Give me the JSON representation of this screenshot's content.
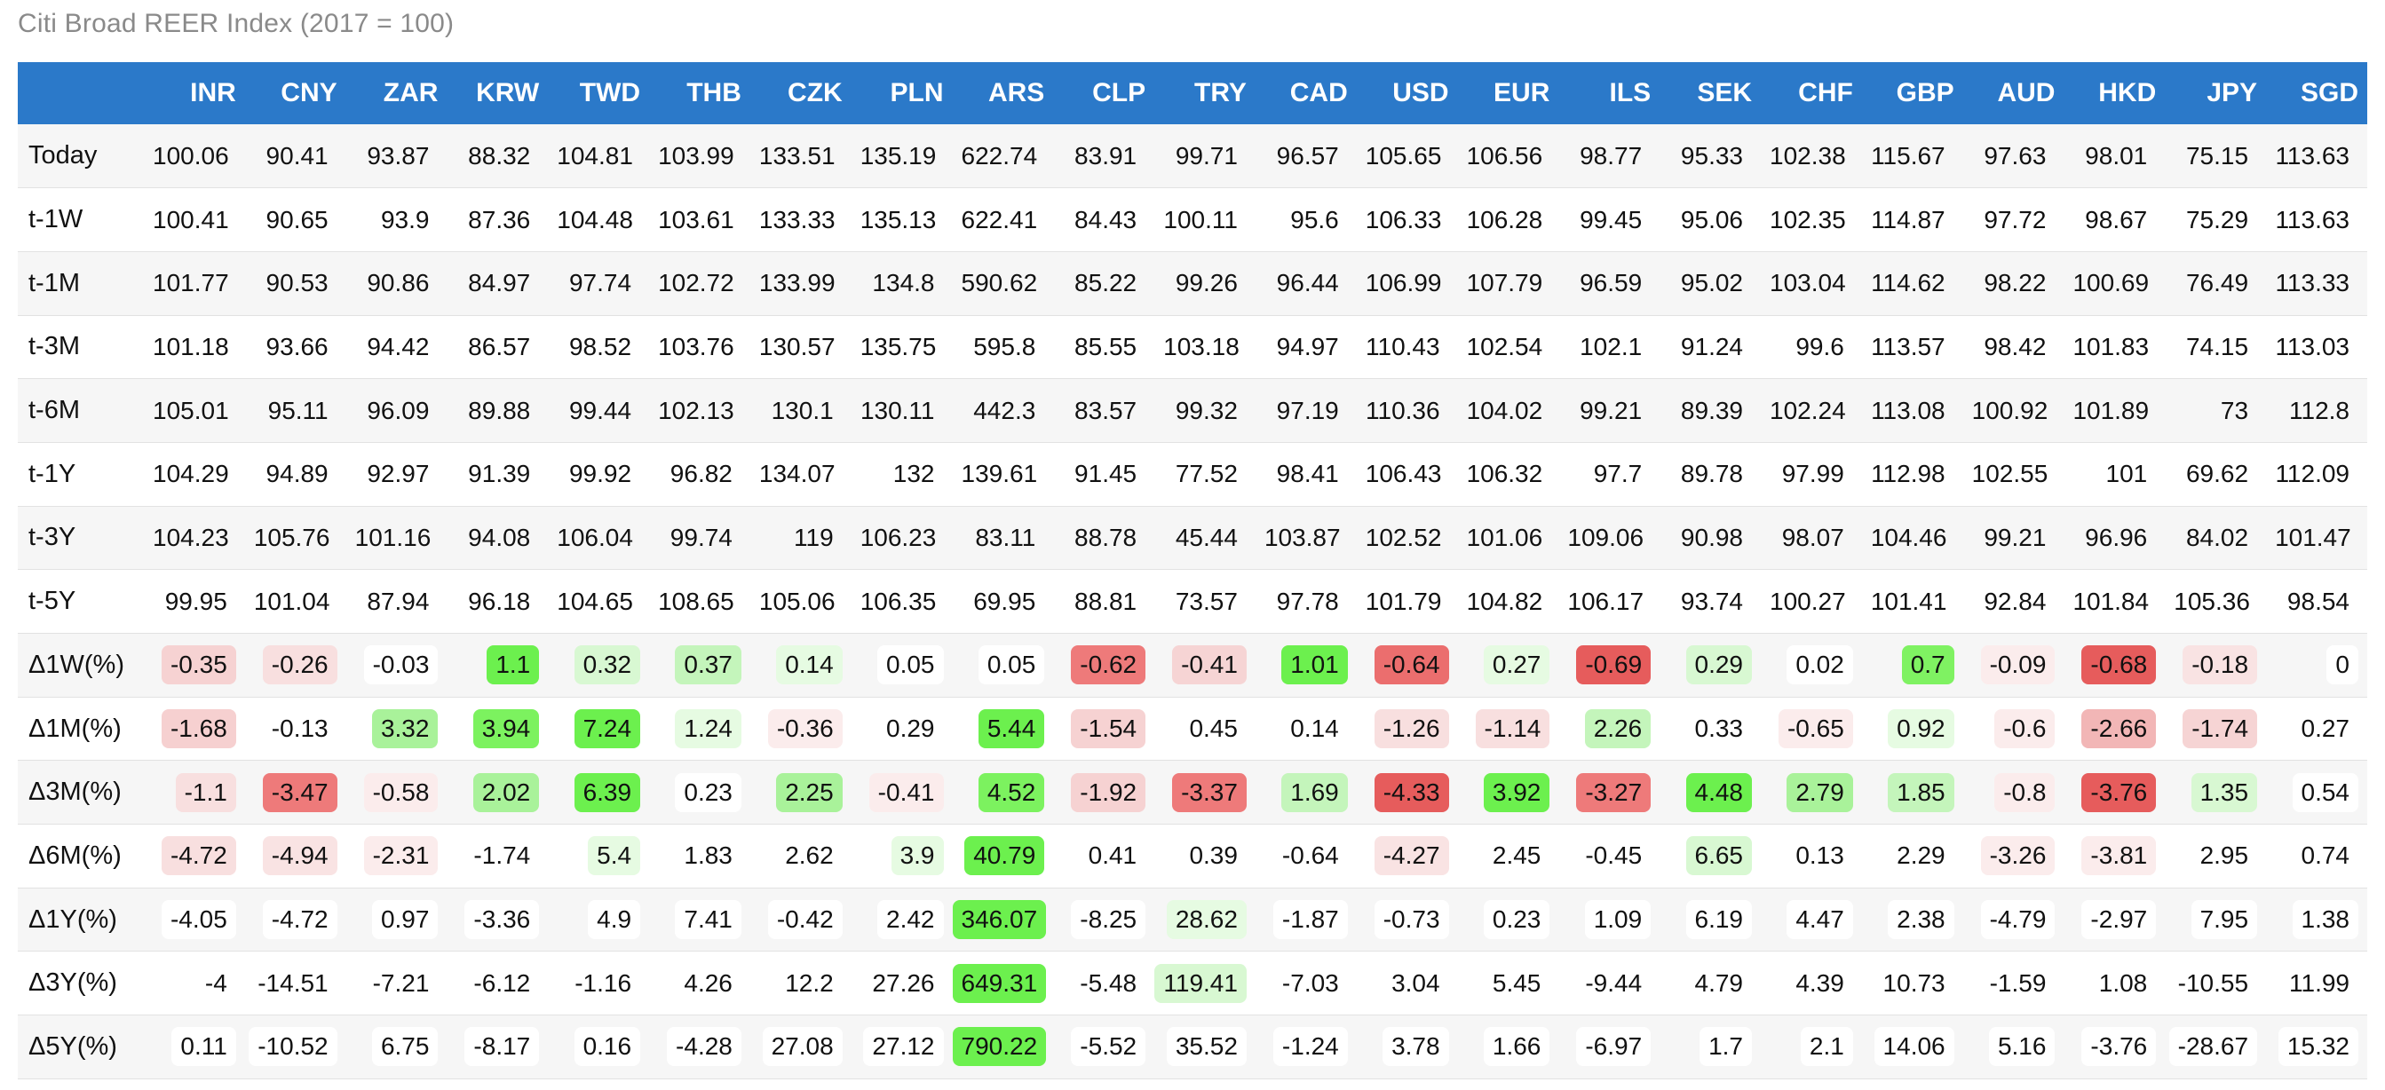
{
  "title": "Citi Broad REER Index (2017 = 100)",
  "chart_data": {
    "type": "table",
    "title": "Citi Broad REER Index (2017 = 100)",
    "columns": [
      "INR",
      "CNY",
      "ZAR",
      "KRW",
      "TWD",
      "THB",
      "CZK",
      "PLN",
      "ARS",
      "CLP",
      "TRY",
      "CAD",
      "USD",
      "EUR",
      "ILS",
      "SEK",
      "CHF",
      "GBP",
      "AUD",
      "HKD",
      "JPY",
      "SGD"
    ],
    "rows": [
      {
        "label": "Today",
        "values": [
          "100.06",
          "90.41",
          "93.87",
          "88.32",
          "104.81",
          "103.99",
          "133.51",
          "135.19",
          "622.74",
          "83.91",
          "99.71",
          "96.57",
          "105.65",
          "106.56",
          "98.77",
          "95.33",
          "102.38",
          "115.67",
          "97.63",
          "98.01",
          "75.15",
          "113.63"
        ]
      },
      {
        "label": "t-1W",
        "values": [
          "100.41",
          "90.65",
          "93.9",
          "87.36",
          "104.48",
          "103.61",
          "133.33",
          "135.13",
          "622.41",
          "84.43",
          "100.11",
          "95.6",
          "106.33",
          "106.28",
          "99.45",
          "95.06",
          "102.35",
          "114.87",
          "97.72",
          "98.67",
          "75.29",
          "113.63"
        ]
      },
      {
        "label": "t-1M",
        "values": [
          "101.77",
          "90.53",
          "90.86",
          "84.97",
          "97.74",
          "102.72",
          "133.99",
          "134.8",
          "590.62",
          "85.22",
          "99.26",
          "96.44",
          "106.99",
          "107.79",
          "96.59",
          "95.02",
          "103.04",
          "114.62",
          "98.22",
          "100.69",
          "76.49",
          "113.33"
        ]
      },
      {
        "label": "t-3M",
        "values": [
          "101.18",
          "93.66",
          "94.42",
          "86.57",
          "98.52",
          "103.76",
          "130.57",
          "135.75",
          "595.8",
          "85.55",
          "103.18",
          "94.97",
          "110.43",
          "102.54",
          "102.1",
          "91.24",
          "99.6",
          "113.57",
          "98.42",
          "101.83",
          "74.15",
          "113.03"
        ]
      },
      {
        "label": "t-6M",
        "values": [
          "105.01",
          "95.11",
          "96.09",
          "89.88",
          "99.44",
          "102.13",
          "130.1",
          "130.11",
          "442.3",
          "83.57",
          "99.32",
          "97.19",
          "110.36",
          "104.02",
          "99.21",
          "89.39",
          "102.24",
          "113.08",
          "100.92",
          "101.89",
          "73",
          "112.8"
        ]
      },
      {
        "label": "t-1Y",
        "values": [
          "104.29",
          "94.89",
          "92.97",
          "91.39",
          "99.92",
          "96.82",
          "134.07",
          "132",
          "139.61",
          "91.45",
          "77.52",
          "98.41",
          "106.43",
          "106.32",
          "97.7",
          "89.78",
          "97.99",
          "112.98",
          "102.55",
          "101",
          "69.62",
          "112.09"
        ]
      },
      {
        "label": "t-3Y",
        "values": [
          "104.23",
          "105.76",
          "101.16",
          "94.08",
          "106.04",
          "99.74",
          "119",
          "106.23",
          "83.11",
          "88.78",
          "45.44",
          "103.87",
          "102.52",
          "101.06",
          "109.06",
          "90.98",
          "98.07",
          "104.46",
          "99.21",
          "96.96",
          "84.02",
          "101.47"
        ]
      },
      {
        "label": "t-5Y",
        "values": [
          "99.95",
          "101.04",
          "87.94",
          "96.18",
          "104.65",
          "108.65",
          "105.06",
          "106.35",
          "69.95",
          "88.81",
          "73.57",
          "97.78",
          "101.79",
          "104.82",
          "106.17",
          "93.74",
          "100.27",
          "101.41",
          "92.84",
          "101.84",
          "105.36",
          "98.54"
        ]
      },
      {
        "label": "Δ1W(%)",
        "values": [
          "-0.35",
          "-0.26",
          "-0.03",
          "1.1",
          "0.32",
          "0.37",
          "0.14",
          "0.05",
          "0.05",
          "-0.62",
          "-0.41",
          "1.01",
          "-0.64",
          "0.27",
          "-0.69",
          "0.29",
          "0.02",
          "0.7",
          "-0.09",
          "-0.68",
          "-0.18",
          "0"
        ]
      },
      {
        "label": "Δ1M(%)",
        "values": [
          "-1.68",
          "-0.13",
          "3.32",
          "3.94",
          "7.24",
          "1.24",
          "-0.36",
          "0.29",
          "5.44",
          "-1.54",
          "0.45",
          "0.14",
          "-1.26",
          "-1.14",
          "2.26",
          "0.33",
          "-0.65",
          "0.92",
          "-0.6",
          "-2.66",
          "-1.74",
          "0.27"
        ]
      },
      {
        "label": "Δ3M(%)",
        "values": [
          "-1.1",
          "-3.47",
          "-0.58",
          "2.02",
          "6.39",
          "0.23",
          "2.25",
          "-0.41",
          "4.52",
          "-1.92",
          "-3.37",
          "1.69",
          "-4.33",
          "3.92",
          "-3.27",
          "4.48",
          "2.79",
          "1.85",
          "-0.8",
          "-3.76",
          "1.35",
          "0.54"
        ]
      },
      {
        "label": "Δ6M(%)",
        "values": [
          "-4.72",
          "-4.94",
          "-2.31",
          "-1.74",
          "5.4",
          "1.83",
          "2.62",
          "3.9",
          "40.79",
          "0.41",
          "0.39",
          "-0.64",
          "-4.27",
          "2.45",
          "-0.45",
          "6.65",
          "0.13",
          "2.29",
          "-3.26",
          "-3.81",
          "2.95",
          "0.74"
        ]
      },
      {
        "label": "Δ1Y(%)",
        "values": [
          "-4.05",
          "-4.72",
          "0.97",
          "-3.36",
          "4.9",
          "7.41",
          "-0.42",
          "2.42",
          "346.07",
          "-8.25",
          "28.62",
          "-1.87",
          "-0.73",
          "0.23",
          "1.09",
          "6.19",
          "4.47",
          "2.38",
          "-4.79",
          "-2.97",
          "7.95",
          "1.38"
        ]
      },
      {
        "label": "Δ3Y(%)",
        "values": [
          "-4",
          "-14.51",
          "-7.21",
          "-6.12",
          "-1.16",
          "4.26",
          "12.2",
          "27.26",
          "649.31",
          "-5.48",
          "119.41",
          "-7.03",
          "3.04",
          "5.45",
          "-9.44",
          "4.79",
          "4.39",
          "10.73",
          "-1.59",
          "1.08",
          "-10.55",
          "11.99"
        ]
      },
      {
        "label": "Δ5Y(%)",
        "values": [
          "0.11",
          "-10.52",
          "6.75",
          "-8.17",
          "0.16",
          "-4.28",
          "27.08",
          "27.12",
          "790.22",
          "-5.52",
          "35.52",
          "-1.24",
          "3.78",
          "1.66",
          "-6.97",
          "1.7",
          "2.1",
          "14.06",
          "5.16",
          "-3.76",
          "-28.67",
          "15.32"
        ]
      }
    ],
    "cell_colors": {
      "Δ1W(%)": [
        "#f6d2d2",
        "#f8dfdf",
        "",
        "#6cf04e",
        "#d8f8d2",
        "#c4f5bb",
        "#e6fbe2",
        "",
        "",
        "#ee7a7a",
        "#f6d4d4",
        "#6cf04e",
        "#eb6e6e",
        "#e6fbe2",
        "#e65c5c",
        "#d8f8d2",
        "",
        "#7ff262",
        "#fbecec",
        "#e65c5c",
        "#f9e3e3",
        ""
      ],
      "Δ1M(%)": [
        "#f6d0d0",
        "",
        "#a9f29a",
        "#7cf25f",
        "#6cf04e",
        "#e6fbe2",
        "#fbecec",
        "",
        "#6cf04e",
        "#f6d2d2",
        "",
        "",
        "#f8dfdf",
        "#f8dfdf",
        "#c4f5bb",
        "",
        "#fbecec",
        "#e6fbe2",
        "#fbecec",
        "#f2b6b6",
        "#f6d4d4",
        ""
      ],
      "Δ3M(%)": [
        "#f8dfdf",
        "#ee7a7a",
        "#fbecec",
        "#a9f29a",
        "#6cf04e",
        "",
        "#a9f29a",
        "#fbecec",
        "#7cf25f",
        "#f6d2d2",
        "#ee7a7a",
        "#c4f5bb",
        "#e65c5c",
        "#6cf04e",
        "#ee7a7a",
        "#6cf04e",
        "#a9f29a",
        "#c4f5bb",
        "#fbecec",
        "#e65c5c",
        "#d8f8d2",
        ""
      ],
      "Δ6M(%)": [
        "#f8dfdf",
        "#f9e3e3",
        "#fbecec",
        "",
        "#e6fbe2",
        "",
        "",
        "#e6fbe2",
        "#6cf04e",
        "",
        "",
        "",
        "#f9e3e3",
        "",
        "",
        "#d8f8d2",
        "",
        "",
        "#fbecec",
        "#fbecec",
        "",
        ""
      ],
      "Δ1Y(%)": [
        "",
        "",
        "",
        "",
        "",
        "",
        "",
        "",
        "#6cf04e",
        "",
        "#e6fbe2",
        "",
        "",
        "",
        "",
        "",
        "",
        "",
        "",
        "",
        "",
        ""
      ],
      "Δ3Y(%)": [
        "",
        "",
        "",
        "",
        "",
        "",
        "",
        "",
        "#6cf04e",
        "",
        "#d8f8d2",
        "",
        "",
        "",
        "",
        "",
        "",
        "",
        "",
        "",
        "",
        ""
      ],
      "Δ5Y(%)": [
        "",
        "",
        "",
        "",
        "",
        "",
        "",
        "",
        "#6cf04e",
        "",
        "",
        "",
        "",
        "",
        "",
        "",
        "",
        "",
        "",
        "",
        "",
        ""
      ]
    }
  }
}
